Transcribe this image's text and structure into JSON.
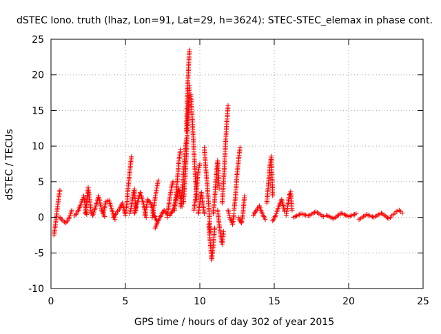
{
  "chart_data": {
    "type": "scatter",
    "title": "dSTEC Iono. truth (lhaz, Lon=91, Lat=29, h=3624): STEC-STEC_elemax in phase cont.",
    "xlabel": "GPS time / hours of day 302 of year 2015",
    "ylabel": "dSTEC  / TECUs",
    "xlim": [
      0,
      25
    ],
    "ylim": [
      -10,
      25
    ],
    "xticks": [
      0,
      5,
      10,
      15,
      20,
      25
    ],
    "xtick_labels": [
      "0",
      "5",
      "10",
      "15",
      "20",
      "25"
    ],
    "yticks": [
      -10,
      -5,
      0,
      5,
      10,
      15,
      20,
      25
    ],
    "ytick_labels": [
      "-10",
      "-5",
      "0",
      "5",
      "10",
      "15",
      "20",
      "25"
    ],
    "grid": true,
    "marker": "+",
    "color": "#ff0000",
    "arcs": [
      {
        "x": [
          0.2,
          0.3,
          0.4,
          0.5,
          0.6
        ],
        "y": [
          -2.5,
          -1.0,
          0.8,
          2.5,
          3.8
        ]
      },
      {
        "x": [
          0.6,
          0.8,
          1.0,
          1.2,
          1.4
        ],
        "y": [
          0.0,
          -0.5,
          -0.8,
          -0.2,
          1.0
        ]
      },
      {
        "x": [
          1.6,
          1.8,
          2.0,
          2.2,
          2.4
        ],
        "y": [
          0.2,
          0.8,
          1.8,
          3.0,
          0.4
        ]
      },
      {
        "x": [
          2.3,
          2.4,
          2.5,
          2.6,
          2.7
        ],
        "y": [
          0.5,
          2.0,
          4.2,
          2.5,
          0.5
        ]
      },
      {
        "x": [
          2.8,
          3.0,
          3.2,
          3.4,
          3.6
        ],
        "y": [
          0.2,
          1.5,
          3.0,
          1.0,
          0.1
        ]
      },
      {
        "x": [
          3.5,
          3.7,
          3.9,
          4.1,
          4.3
        ],
        "y": [
          0.5,
          2.2,
          2.4,
          1.0,
          -0.3
        ]
      },
      {
        "x": [
          4.2,
          4.4,
          4.6,
          4.8,
          5.0
        ],
        "y": [
          0.0,
          0.6,
          1.2,
          2.0,
          0.3
        ]
      },
      {
        "x": [
          5.0,
          5.1,
          5.2,
          5.3,
          5.4
        ],
        "y": [
          0.5,
          2.0,
          4.5,
          6.5,
          8.5
        ]
      },
      {
        "x": [
          5.3,
          5.4,
          5.5,
          5.6,
          5.7
        ],
        "y": [
          0.5,
          1.5,
          3.0,
          4.0,
          1.0
        ]
      },
      {
        "x": [
          5.6,
          5.8,
          6.0,
          6.2,
          6.4
        ],
        "y": [
          0.5,
          2.0,
          3.5,
          2.0,
          0.0
        ]
      },
      {
        "x": [
          6.3,
          6.5,
          6.7,
          6.9,
          7.1
        ],
        "y": [
          0.2,
          2.5,
          2.0,
          0.5,
          -0.5
        ]
      },
      {
        "x": [
          6.8,
          6.9,
          7.0,
          7.1,
          7.2
        ],
        "y": [
          0.0,
          1.2,
          2.8,
          4.0,
          5.2
        ]
      },
      {
        "x": [
          7.0,
          7.2,
          7.4,
          7.6,
          7.8
        ],
        "y": [
          -1.5,
          -0.5,
          0.3,
          1.0,
          0.5
        ]
      },
      {
        "x": [
          7.8,
          7.9,
          8.0,
          8.1,
          8.2
        ],
        "y": [
          0.0,
          1.5,
          3.0,
          4.2,
          5.0
        ]
      },
      {
        "x": [
          8.0,
          8.2,
          8.4,
          8.6,
          8.8
        ],
        "y": [
          0.3,
          1.0,
          2.5,
          4.0,
          1.5
        ]
      },
      {
        "x": [
          8.3,
          8.4,
          8.5,
          8.6,
          8.7
        ],
        "y": [
          1.0,
          3.0,
          5.5,
          8.0,
          9.5
        ]
      },
      {
        "x": [
          8.7,
          8.8,
          8.9,
          9.0,
          9.1
        ],
        "y": [
          1.5,
          3.5,
          6.0,
          9.0,
          11.0
        ]
      },
      {
        "x": [
          8.9,
          9.0,
          9.1,
          9.2,
          9.3
        ],
        "y": [
          2.0,
          5.0,
          9.0,
          14.0,
          18.5
        ]
      },
      {
        "x": [
          9.1,
          9.15,
          9.2,
          9.25,
          9.3
        ],
        "y": [
          12.0,
          16.0,
          19.0,
          21.5,
          23.5
        ]
      },
      {
        "x": [
          9.4,
          9.5,
          9.6,
          9.7,
          9.8
        ],
        "y": [
          17.2,
          13.5,
          9.5,
          5.5,
          2.5
        ]
      },
      {
        "x": [
          9.6,
          9.7,
          9.8,
          9.9,
          10.0
        ],
        "y": [
          1.0,
          2.5,
          4.5,
          6.5,
          7.5
        ]
      },
      {
        "x": [
          9.9,
          10.0,
          10.1,
          10.2,
          10.3
        ],
        "y": [
          0.5,
          2.0,
          3.5,
          2.0,
          0.5
        ]
      },
      {
        "x": [
          10.3,
          10.4,
          10.5,
          10.6,
          10.7
        ],
        "y": [
          9.8,
          7.0,
          4.5,
          1.5,
          -2.0
        ]
      },
      {
        "x": [
          10.6,
          10.7,
          10.8,
          10.9,
          11.0
        ],
        "y": [
          -1.0,
          -3.5,
          -6.0,
          -4.0,
          -1.5
        ]
      },
      {
        "x": [
          10.9,
          11.0,
          11.1,
          11.2,
          11.3
        ],
        "y": [
          0.5,
          2.5,
          6.0,
          8.0,
          4.0
        ]
      },
      {
        "x": [
          11.2,
          11.3,
          11.4,
          11.5,
          11.6
        ],
        "y": [
          1.0,
          -1.0,
          -2.5,
          -3.8,
          -2.0
        ]
      },
      {
        "x": [
          11.5,
          11.6,
          11.7,
          11.8,
          11.9
        ],
        "y": [
          2.0,
          5.0,
          9.0,
          13.0,
          15.7
        ]
      },
      {
        "x": [
          11.9,
          12.0,
          12.1,
          12.2,
          12.3
        ],
        "y": [
          1.0,
          0.0,
          -0.5,
          -1.0,
          0.5
        ]
      },
      {
        "x": [
          12.3,
          12.4,
          12.5,
          12.6,
          12.7
        ],
        "y": [
          1.0,
          3.0,
          6.0,
          8.0,
          9.8
        ]
      },
      {
        "x": [
          12.6,
          12.7,
          12.8,
          12.9,
          13.0
        ],
        "y": [
          0.0,
          -0.5,
          -0.8,
          0.5,
          3.0
        ]
      },
      {
        "x": [
          13.6,
          13.8,
          14.0,
          14.2,
          14.4
        ],
        "y": [
          0.3,
          1.0,
          1.6,
          0.5,
          -0.3
        ]
      },
      {
        "x": [
          14.5,
          14.6,
          14.7,
          14.8,
          14.9
        ],
        "y": [
          2.0,
          4.5,
          7.0,
          8.6,
          3.0
        ]
      },
      {
        "x": [
          14.9,
          15.1,
          15.3,
          15.5,
          15.7
        ],
        "y": [
          -0.5,
          0.3,
          1.5,
          2.5,
          0.8
        ]
      },
      {
        "x": [
          15.8,
          15.9,
          16.0,
          16.1,
          16.2
        ],
        "y": [
          0.3,
          1.5,
          3.0,
          3.6,
          1.0
        ]
      },
      {
        "x": [
          16.3,
          16.8,
          17.3,
          17.8,
          18.3
        ],
        "y": [
          0.0,
          0.5,
          0.2,
          0.8,
          0.1
        ]
      },
      {
        "x": [
          18.5,
          19.0,
          19.5,
          20.0,
          20.5
        ],
        "y": [
          0.3,
          -0.2,
          0.6,
          0.1,
          0.5
        ]
      },
      {
        "x": [
          20.7,
          21.2,
          21.7,
          22.2,
          22.7
        ],
        "y": [
          -0.3,
          0.4,
          0.0,
          0.6,
          -0.2
        ]
      },
      {
        "x": [
          22.8,
          23.0,
          23.2,
          23.4,
          23.6
        ],
        "y": [
          0.0,
          0.4,
          0.8,
          1.0,
          0.6
        ]
      }
    ]
  }
}
